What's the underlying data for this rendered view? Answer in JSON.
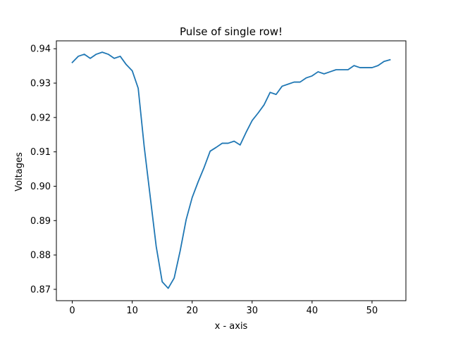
{
  "chart_data": {
    "type": "line",
    "title": "Pulse of single row!",
    "xlabel": "x - axis",
    "ylabel": "Voltages",
    "xlim": [
      -2.65,
      55.65
    ],
    "ylim": [
      0.8667,
      0.9423
    ],
    "xticks": [
      0,
      10,
      20,
      30,
      40,
      50
    ],
    "xtick_labels": [
      "0",
      "10",
      "20",
      "30",
      "40",
      "50"
    ],
    "yticks": [
      0.87,
      0.88,
      0.89,
      0.9,
      0.91,
      0.92,
      0.93,
      0.94
    ],
    "ytick_labels": [
      "0.87",
      "0.88",
      "0.89",
      "0.90",
      "0.91",
      "0.92",
      "0.93",
      "0.94"
    ],
    "grid": false,
    "line_color": "#1f77b4",
    "series": [
      {
        "x": [
          0,
          1,
          2,
          3,
          4,
          5,
          6,
          7,
          8,
          9,
          10,
          11,
          12,
          13,
          14,
          15,
          16,
          17,
          18,
          19,
          20,
          21,
          22,
          23,
          24,
          25,
          26,
          27,
          28,
          29,
          30,
          31,
          32,
          33,
          34,
          35,
          36,
          37,
          38,
          39,
          40,
          41,
          42,
          43,
          44,
          45,
          46,
          47,
          48,
          49,
          50,
          51,
          52,
          53
        ],
        "values": [
          0.936,
          0.9378,
          0.9384,
          0.9372,
          0.9384,
          0.939,
          0.9384,
          0.9372,
          0.9378,
          0.9354,
          0.9336,
          0.9285,
          0.9115,
          0.897,
          0.8825,
          0.8722,
          0.8703,
          0.8733,
          0.8812,
          0.8903,
          0.8967,
          0.9013,
          0.9055,
          0.9102,
          0.9113,
          0.9125,
          0.9125,
          0.9131,
          0.912,
          0.9157,
          0.9191,
          0.9213,
          0.9237,
          0.9273,
          0.9267,
          0.9291,
          0.9297,
          0.9303,
          0.9303,
          0.9315,
          0.9321,
          0.9333,
          0.9327,
          0.9333,
          0.9339,
          0.9339,
          0.9339,
          0.9351,
          0.9345,
          0.9345,
          0.9345,
          0.9351,
          0.9363,
          0.9368
        ]
      }
    ]
  }
}
